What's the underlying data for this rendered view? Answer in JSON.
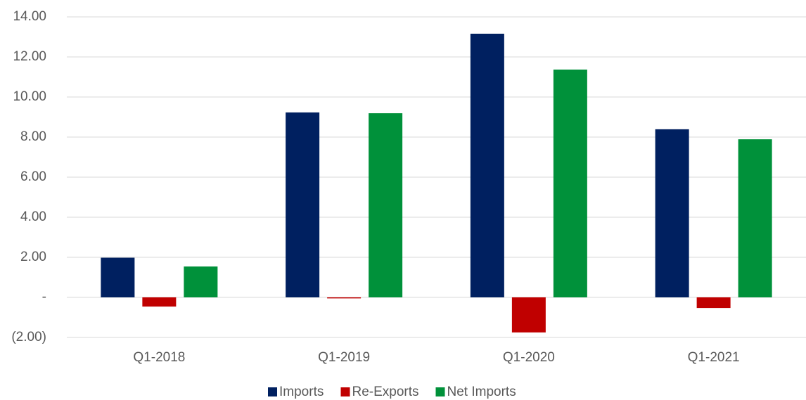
{
  "chart_data": {
    "type": "bar",
    "categories": [
      "Q1-2018",
      "Q1-2019",
      "Q1-2020",
      "Q1-2021"
    ],
    "series": [
      {
        "name": "Imports",
        "color": "#002060",
        "values": [
          1.98,
          9.23,
          13.16,
          8.39
        ]
      },
      {
        "name": "Re-Exports",
        "color": "#c00000",
        "values": [
          -0.46,
          -0.05,
          -1.75,
          -0.53
        ]
      },
      {
        "name": "Net Imports",
        "color": "#00913a",
        "values": [
          1.54,
          9.19,
          11.37,
          7.89
        ]
      }
    ],
    "ylim": [
      -2,
      14
    ],
    "yticks": [
      {
        "value": -2,
        "label": "(2.00)"
      },
      {
        "value": 0,
        "label": "-"
      },
      {
        "value": 2,
        "label": "2.00"
      },
      {
        "value": 4,
        "label": "4.00"
      },
      {
        "value": 6,
        "label": "6.00"
      },
      {
        "value": 8,
        "label": "8.00"
      },
      {
        "value": 10,
        "label": "10.00"
      },
      {
        "value": 12,
        "label": "12.00"
      },
      {
        "value": 14,
        "label": "14.00"
      }
    ],
    "grid": true,
    "legend": "bottom"
  }
}
